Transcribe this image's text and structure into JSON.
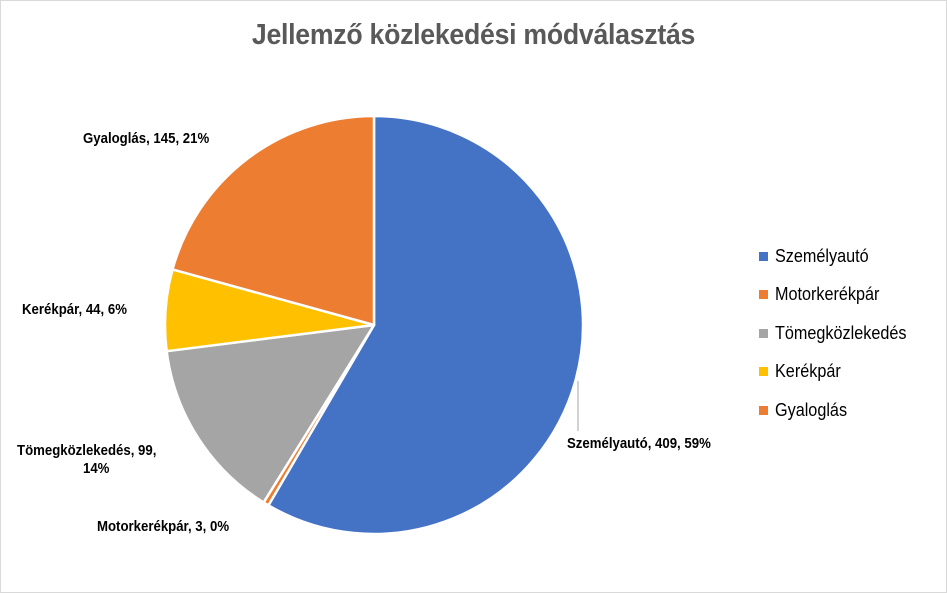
{
  "title": "Jellemző közlekedési módválasztás",
  "legend": {
    "items": [
      {
        "label": "Személyautó",
        "color": "#4472C4"
      },
      {
        "label": "Motorkerékpár",
        "color": "#ED7D31"
      },
      {
        "label": "Tömegközlekedés",
        "color": "#A5A5A5"
      },
      {
        "label": "Kerékpár",
        "color": "#FFC000"
      },
      {
        "label": "Gyaloglás",
        "color": "#ED7D31"
      }
    ]
  },
  "labels": {
    "szemelyauto": "Személyautó, 409, 59%",
    "motorkerekpar": "Motorkerékpár, 3, 0%",
    "tomeg_line1": "Tömegközlekedés, 99,",
    "tomeg_line2": "14%",
    "kerekpar": "Kerékpár, 44, 6%",
    "gyaloglas": "Gyaloglás, 145, 21%"
  },
  "chart_data": {
    "type": "pie",
    "title": "Jellemző közlekedési módválasztás",
    "categories": [
      "Személyautó",
      "Motorkerékpár",
      "Tömegközlekedés",
      "Kerékpár",
      "Gyaloglás"
    ],
    "values": [
      409,
      3,
      99,
      44,
      145
    ],
    "percentages": [
      59,
      0,
      14,
      6,
      21
    ],
    "colors": [
      "#4472C4",
      "#ED7D31",
      "#A5A5A5",
      "#FFC000",
      "#ED7D31"
    ],
    "data_labels": [
      "Személyautó, 409, 59%",
      "Motorkerékpár, 3, 0%",
      "Tömegközlekedés, 99, 14%",
      "Kerékpár, 44, 6%",
      "Gyaloglás, 145, 21%"
    ],
    "legend_position": "right",
    "start_angle": 0,
    "direction": "clockwise"
  }
}
